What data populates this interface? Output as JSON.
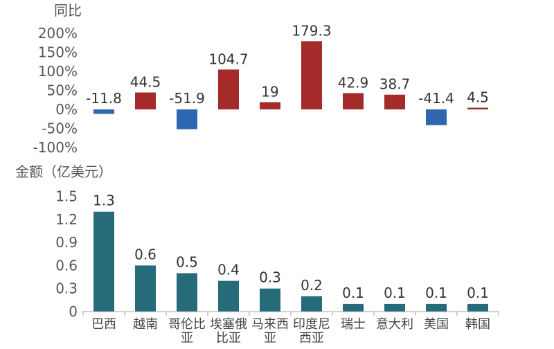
{
  "chart_data": [
    {
      "type": "bar",
      "title": "同比",
      "categories": [
        "巴西",
        "越南",
        "哥伦比亚",
        "埃塞俄比亚",
        "马来西亚",
        "印度尼西亚",
        "瑞士",
        "意大利",
        "美国",
        "韩国"
      ],
      "values": [
        -11.8,
        44.5,
        -51.9,
        104.7,
        19,
        179.3,
        42.9,
        38.7,
        -41.4,
        4.5
      ],
      "data_labels": [
        "-11.8",
        "44.5",
        "-51.9",
        "104.7",
        "19",
        "179.3",
        "42.9",
        "38.7",
        "-41.4",
        "4.5"
      ],
      "yticks": [
        -100,
        -50,
        0,
        50,
        100,
        150,
        200
      ],
      "ytick_labels": [
        "-100%",
        "-50%",
        "0%",
        "50%",
        "100%",
        "150%",
        "200%"
      ],
      "ylim": [
        -100,
        200
      ],
      "colors": {
        "positive": "#A52A2A",
        "negative": "#2E66B0"
      },
      "grid": false,
      "legend": "none"
    },
    {
      "type": "bar",
      "title": "金额（亿美元）",
      "categories": [
        "巴西",
        "越南",
        "哥伦比亚",
        "埃塞俄比亚",
        "马来西亚",
        "印度尼西亚",
        "瑞士",
        "意大利",
        "美国",
        "韩国"
      ],
      "values": [
        1.3,
        0.6,
        0.5,
        0.4,
        0.3,
        0.2,
        0.1,
        0.1,
        0.1,
        0.1
      ],
      "data_labels": [
        "1.3",
        "0.6",
        "0.5",
        "0.4",
        "0.3",
        "0.2",
        "0.1",
        "0.1",
        "0.1",
        "0.1"
      ],
      "yticks": [
        0,
        0.3,
        0.6,
        0.9,
        1.2,
        1.5
      ],
      "ytick_labels": [
        "0",
        "0.3",
        "0.6",
        "0.9",
        "1.2",
        "1.5"
      ],
      "ylim": [
        0,
        1.5
      ],
      "colors": {
        "bar": "#256B79"
      },
      "grid": false,
      "legend": "none"
    }
  ],
  "x_tick_lines": [
    [
      "巴西"
    ],
    [
      "越南"
    ],
    [
      "哥伦比",
      "亚"
    ],
    [
      "埃塞俄",
      "比亚"
    ],
    [
      "马来西",
      "亚"
    ],
    [
      "印度尼",
      "西亚"
    ],
    [
      "瑞士"
    ],
    [
      "意大利"
    ],
    [
      "美国"
    ],
    [
      "韩国"
    ]
  ]
}
